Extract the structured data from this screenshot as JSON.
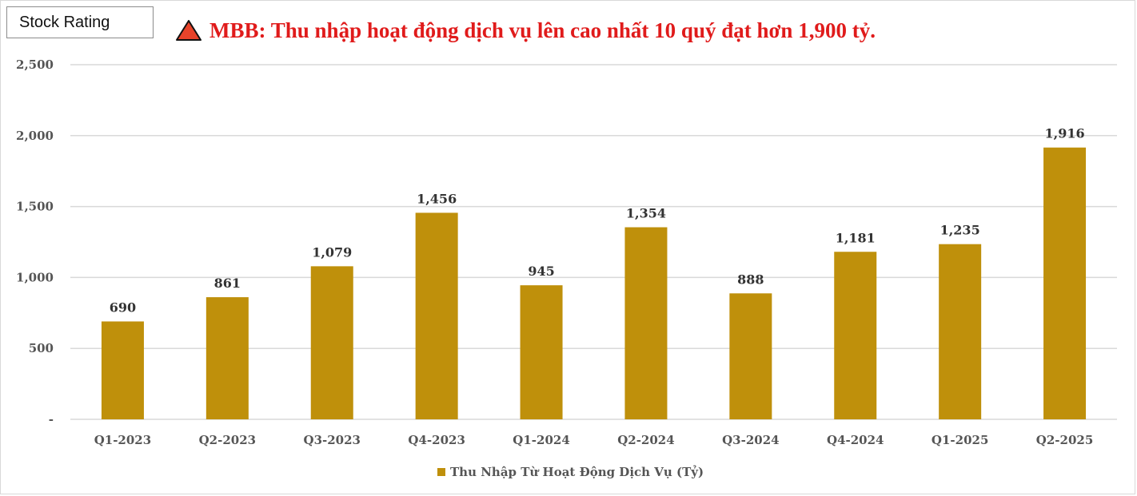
{
  "header": {
    "brand": "Stock Rating",
    "title": "MBB: Thu nhập hoạt động dịch vụ lên cao nhất 10 quý đạt hơn 1,900 tỷ.",
    "title_color": "#e01b1b",
    "marker_icon": "warning-triangle-icon",
    "marker_color": "#e8432a"
  },
  "chart_data": {
    "type": "bar",
    "categories": [
      "Q1-2023",
      "Q2-2023",
      "Q3-2023",
      "Q4-2023",
      "Q1-2024",
      "Q2-2024",
      "Q3-2024",
      "Q4-2024",
      "Q1-2025",
      "Q2-2025"
    ],
    "series": [
      {
        "name": "Thu Nhập Từ Hoạt Động Dịch Vụ (Tỷ)",
        "values": [
          690,
          861,
          1079,
          1456,
          945,
          1354,
          888,
          1181,
          1235,
          1916
        ],
        "labels": [
          "690",
          "861",
          "1,079",
          "1,456",
          "945",
          "1,354",
          "888",
          "1,181",
          "1,235",
          "1,916"
        ],
        "color": "#bf900b"
      }
    ],
    "ylim": [
      0,
      2500
    ],
    "yticks": [
      0,
      500,
      1000,
      1500,
      2000,
      2500
    ],
    "ytick_labels": [
      "-",
      "500",
      "1,000",
      "1,500",
      "2,000",
      "2,500"
    ],
    "grid": true,
    "legend_position": "bottom-center"
  }
}
